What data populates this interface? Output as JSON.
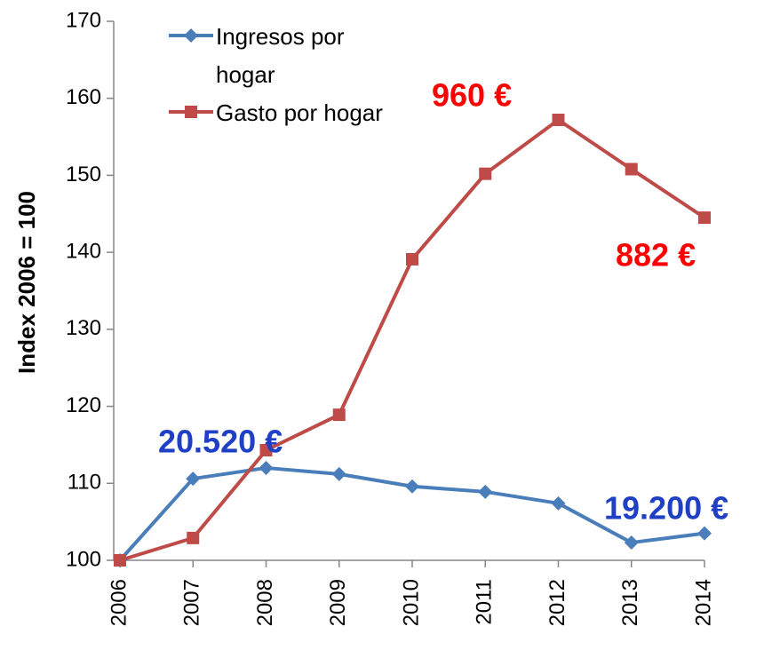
{
  "chart_data": {
    "type": "line",
    "y_label": "Index 2006 = 100",
    "categories": [
      "2006",
      "2007",
      "2008",
      "2009",
      "2010",
      "2011",
      "2012",
      "2013",
      "2014"
    ],
    "series": [
      {
        "name": "Ingresos por hogar",
        "color": "#4a7ebb",
        "marker": "diamond",
        "values": [
          100,
          110.6,
          112,
          111.2,
          109.6,
          108.9,
          107.4,
          102.3,
          103.5
        ]
      },
      {
        "name": "Gasto por hogar",
        "color": "#be4b48",
        "marker": "square",
        "values": [
          100,
          102.9,
          114.3,
          118.9,
          139.1,
          150.2,
          157.2,
          150.8,
          144.5
        ]
      }
    ],
    "ylim": [
      100,
      170
    ],
    "yticks": [
      100,
      110,
      120,
      130,
      140,
      150,
      160,
      170
    ],
    "legend": "top-left",
    "annotations": [
      {
        "text": "20.520 €",
        "color": "#1f3fc4"
      },
      {
        "text": "19.200 €",
        "color": "#1f3fc4"
      },
      {
        "text": "960 €",
        "color": "#ff0000"
      },
      {
        "text": "882 €",
        "color": "#ff0000"
      }
    ]
  }
}
